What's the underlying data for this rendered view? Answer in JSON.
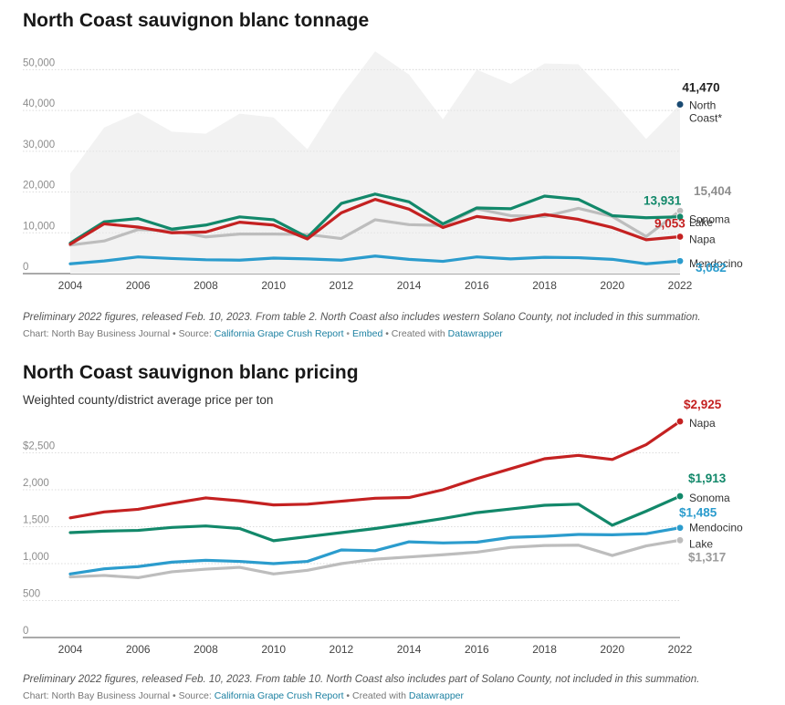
{
  "chart_data": [
    {
      "type": "line",
      "title": "North Coast sauvignon blanc tonnage",
      "subtitle": "",
      "x": [
        2004,
        2005,
        2006,
        2007,
        2008,
        2009,
        2010,
        2011,
        2012,
        2013,
        2014,
        2015,
        2016,
        2017,
        2018,
        2019,
        2020,
        2021,
        2022
      ],
      "xticks": [
        2004,
        2006,
        2008,
        2010,
        2012,
        2014,
        2016,
        2018,
        2020,
        2022
      ],
      "ylim": [
        0,
        55000
      ],
      "yticks": [
        0,
        10000,
        20000,
        30000,
        40000,
        50000
      ],
      "ytick_labels": [
        "0",
        "10,000",
        "20,000",
        "30,000",
        "40,000",
        "50,000"
      ],
      "grid": true,
      "area": {
        "name": "North Coast*",
        "color": "#f2f2f2",
        "values": [
          24500,
          35800,
          39500,
          34800,
          34300,
          39200,
          38300,
          30500,
          43500,
          54500,
          48800,
          37800,
          50000,
          46500,
          51500,
          51300,
          42500,
          33000,
          41470
        ],
        "end_label": "41,470",
        "end_label_color": "#222222",
        "marker_color": "#1a4a72",
        "name_lines": [
          "North",
          "Coast*"
        ]
      },
      "series": [
        {
          "name": "Lake",
          "color": "#bdbdbd",
          "values": [
            7000,
            8000,
            10800,
            10500,
            9000,
            9700,
            9700,
            9600,
            8600,
            13200,
            12000,
            11800,
            15900,
            14200,
            14000,
            16000,
            14000,
            9100,
            15404
          ],
          "end_label": "15,404",
          "end_label_color": "#8e8e8e"
        },
        {
          "name": "Sonoma",
          "color": "#12886a",
          "values": [
            7500,
            12700,
            13500,
            10900,
            11900,
            13900,
            13200,
            8900,
            17200,
            19500,
            17600,
            12200,
            16100,
            15900,
            19000,
            18200,
            14200,
            13700,
            13931
          ],
          "end_label": "13,931",
          "end_label_color": "#12886a"
        },
        {
          "name": "Napa",
          "color": "#c42121",
          "values": [
            7200,
            12200,
            11400,
            10000,
            10200,
            12600,
            11900,
            8500,
            14900,
            18200,
            15800,
            11300,
            14000,
            13000,
            14500,
            13300,
            11300,
            8300,
            9053
          ],
          "end_label": "9,053",
          "end_label_color": "#c42121"
        },
        {
          "name": "Mendocino",
          "color": "#2b9ccd",
          "values": [
            2400,
            3100,
            4100,
            3700,
            3400,
            3300,
            3800,
            3600,
            3300,
            4300,
            3500,
            3000,
            4100,
            3600,
            4000,
            3900,
            3500,
            2400,
            3082
          ],
          "end_label": "3,082",
          "end_label_color": "#2b9ccd"
        }
      ],
      "note": "Preliminary 2022 figures, released Feb. 10, 2023. From table 2. North Coast also includes western Solano County, not included in this summation.",
      "credit": {
        "prefix": "Chart: North Bay Business Journal • Source: ",
        "source_link": "California Grape Crush Report",
        "sep": " • ",
        "embed_link": "Embed",
        "created_prefix": " • Created with ",
        "tool_link": "Datawrapper"
      }
    },
    {
      "type": "line",
      "title": "North Coast sauvignon blanc pricing",
      "subtitle": "Weighted county/district average price per ton",
      "x": [
        2004,
        2005,
        2006,
        2007,
        2008,
        2009,
        2010,
        2011,
        2012,
        2013,
        2014,
        2015,
        2016,
        2017,
        2018,
        2019,
        2020,
        2021,
        2022
      ],
      "xticks": [
        2004,
        2006,
        2008,
        2010,
        2012,
        2014,
        2016,
        2018,
        2020,
        2022
      ],
      "ylim": [
        0,
        3000
      ],
      "yticks": [
        0,
        500,
        1000,
        1500,
        2000,
        2500
      ],
      "ytick_labels": [
        "0",
        "500",
        "1,000",
        "1,500",
        "2,000",
        "$2,500"
      ],
      "grid": true,
      "series": [
        {
          "name": "Napa",
          "color": "#c42121",
          "values": [
            1620,
            1700,
            1735,
            1815,
            1890,
            1850,
            1795,
            1805,
            1845,
            1885,
            1895,
            2000,
            2150,
            2285,
            2420,
            2465,
            2410,
            2610,
            2925
          ],
          "end_label": "$2,925",
          "end_label_color": "#c42121"
        },
        {
          "name": "Sonoma",
          "color": "#12886a",
          "values": [
            1420,
            1440,
            1450,
            1490,
            1510,
            1475,
            1310,
            1365,
            1420,
            1475,
            1540,
            1610,
            1690,
            1740,
            1790,
            1805,
            1520,
            1710,
            1913
          ],
          "end_label": "$1,913",
          "end_label_color": "#12886a"
        },
        {
          "name": "Mendocino",
          "color": "#2b9ccd",
          "values": [
            860,
            930,
            960,
            1020,
            1045,
            1030,
            1000,
            1030,
            1185,
            1175,
            1295,
            1280,
            1290,
            1355,
            1370,
            1395,
            1390,
            1405,
            1485
          ],
          "end_label": "$1,485",
          "end_label_color": "#2b9ccd"
        },
        {
          "name": "Lake",
          "color": "#bdbdbd",
          "values": [
            820,
            840,
            810,
            890,
            925,
            950,
            860,
            910,
            1000,
            1060,
            1090,
            1120,
            1155,
            1220,
            1245,
            1250,
            1110,
            1240,
            1317
          ],
          "end_label": "$1,317",
          "end_label_color": "#9a9a9a"
        }
      ],
      "note": "Preliminary 2022 figures, released Feb. 10, 2023. From table 10. North Coast also includes part of Solano County, not included in this summation.",
      "credit": {
        "prefix": "Chart: North Bay Business Journal • Source: ",
        "source_link": "California Grape Crush Report",
        "sep": "",
        "embed_link": "",
        "created_prefix": " • Created with ",
        "tool_link": "Datawrapper"
      }
    }
  ]
}
